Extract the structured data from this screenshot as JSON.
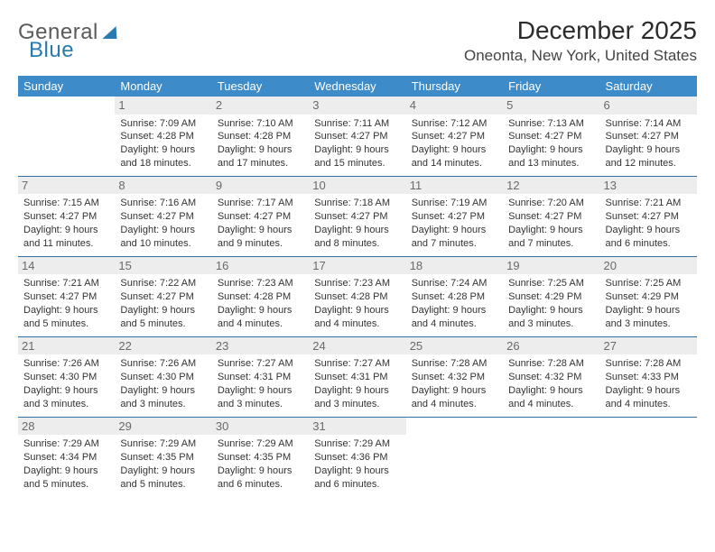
{
  "logo": {
    "gray": "General",
    "blue": "Blue"
  },
  "title": "December 2025",
  "location": "Oneonta, New York, United States",
  "colors": {
    "header_bg": "#3d8bc8",
    "header_text": "#ffffff",
    "row_border": "#2f6fa3",
    "daynum_bg": "#ededed",
    "daynum_text": "#6a6a6a"
  },
  "weekdays": [
    "Sunday",
    "Monday",
    "Tuesday",
    "Wednesday",
    "Thursday",
    "Friday",
    "Saturday"
  ],
  "grid": {
    "rows": 5,
    "cols": 7,
    "start_col": 1,
    "days_in_month": 31
  },
  "labels": {
    "sunrise": "Sunrise: ",
    "sunset": "Sunset: ",
    "daylight": "Daylight: "
  },
  "days": {
    "1": {
      "sunrise": "7:09 AM",
      "sunset": "4:28 PM",
      "daylight": "9 hours and 18 minutes."
    },
    "2": {
      "sunrise": "7:10 AM",
      "sunset": "4:28 PM",
      "daylight": "9 hours and 17 minutes."
    },
    "3": {
      "sunrise": "7:11 AM",
      "sunset": "4:27 PM",
      "daylight": "9 hours and 15 minutes."
    },
    "4": {
      "sunrise": "7:12 AM",
      "sunset": "4:27 PM",
      "daylight": "9 hours and 14 minutes."
    },
    "5": {
      "sunrise": "7:13 AM",
      "sunset": "4:27 PM",
      "daylight": "9 hours and 13 minutes."
    },
    "6": {
      "sunrise": "7:14 AM",
      "sunset": "4:27 PM",
      "daylight": "9 hours and 12 minutes."
    },
    "7": {
      "sunrise": "7:15 AM",
      "sunset": "4:27 PM",
      "daylight": "9 hours and 11 minutes."
    },
    "8": {
      "sunrise": "7:16 AM",
      "sunset": "4:27 PM",
      "daylight": "9 hours and 10 minutes."
    },
    "9": {
      "sunrise": "7:17 AM",
      "sunset": "4:27 PM",
      "daylight": "9 hours and 9 minutes."
    },
    "10": {
      "sunrise": "7:18 AM",
      "sunset": "4:27 PM",
      "daylight": "9 hours and 8 minutes."
    },
    "11": {
      "sunrise": "7:19 AM",
      "sunset": "4:27 PM",
      "daylight": "9 hours and 7 minutes."
    },
    "12": {
      "sunrise": "7:20 AM",
      "sunset": "4:27 PM",
      "daylight": "9 hours and 7 minutes."
    },
    "13": {
      "sunrise": "7:21 AM",
      "sunset": "4:27 PM",
      "daylight": "9 hours and 6 minutes."
    },
    "14": {
      "sunrise": "7:21 AM",
      "sunset": "4:27 PM",
      "daylight": "9 hours and 5 minutes."
    },
    "15": {
      "sunrise": "7:22 AM",
      "sunset": "4:27 PM",
      "daylight": "9 hours and 5 minutes."
    },
    "16": {
      "sunrise": "7:23 AM",
      "sunset": "4:28 PM",
      "daylight": "9 hours and 4 minutes."
    },
    "17": {
      "sunrise": "7:23 AM",
      "sunset": "4:28 PM",
      "daylight": "9 hours and 4 minutes."
    },
    "18": {
      "sunrise": "7:24 AM",
      "sunset": "4:28 PM",
      "daylight": "9 hours and 4 minutes."
    },
    "19": {
      "sunrise": "7:25 AM",
      "sunset": "4:29 PM",
      "daylight": "9 hours and 3 minutes."
    },
    "20": {
      "sunrise": "7:25 AM",
      "sunset": "4:29 PM",
      "daylight": "9 hours and 3 minutes."
    },
    "21": {
      "sunrise": "7:26 AM",
      "sunset": "4:30 PM",
      "daylight": "9 hours and 3 minutes."
    },
    "22": {
      "sunrise": "7:26 AM",
      "sunset": "4:30 PM",
      "daylight": "9 hours and 3 minutes."
    },
    "23": {
      "sunrise": "7:27 AM",
      "sunset": "4:31 PM",
      "daylight": "9 hours and 3 minutes."
    },
    "24": {
      "sunrise": "7:27 AM",
      "sunset": "4:31 PM",
      "daylight": "9 hours and 3 minutes."
    },
    "25": {
      "sunrise": "7:28 AM",
      "sunset": "4:32 PM",
      "daylight": "9 hours and 4 minutes."
    },
    "26": {
      "sunrise": "7:28 AM",
      "sunset": "4:32 PM",
      "daylight": "9 hours and 4 minutes."
    },
    "27": {
      "sunrise": "7:28 AM",
      "sunset": "4:33 PM",
      "daylight": "9 hours and 4 minutes."
    },
    "28": {
      "sunrise": "7:29 AM",
      "sunset": "4:34 PM",
      "daylight": "9 hours and 5 minutes."
    },
    "29": {
      "sunrise": "7:29 AM",
      "sunset": "4:35 PM",
      "daylight": "9 hours and 5 minutes."
    },
    "30": {
      "sunrise": "7:29 AM",
      "sunset": "4:35 PM",
      "daylight": "9 hours and 6 minutes."
    },
    "31": {
      "sunrise": "7:29 AM",
      "sunset": "4:36 PM",
      "daylight": "9 hours and 6 minutes."
    }
  }
}
